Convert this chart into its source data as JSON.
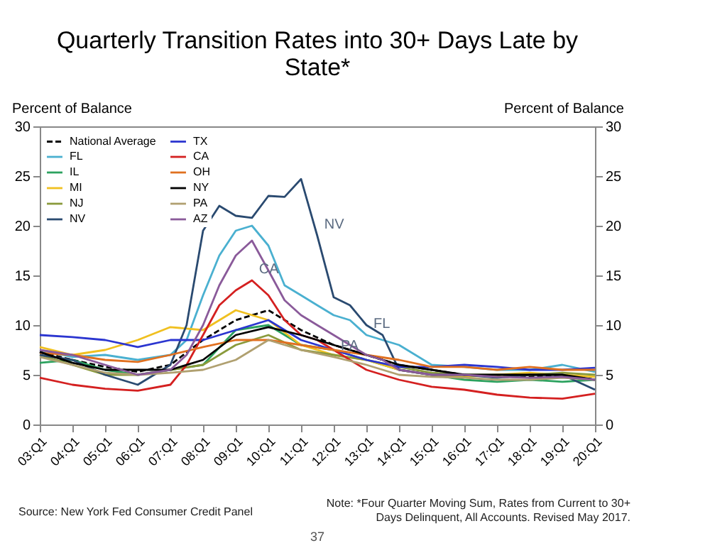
{
  "chart_data": {
    "type": "line",
    "title": "Quarterly Transition Rates into 30+ Days Late by State*",
    "ylabel": "Percent of Balance",
    "y2label": "Percent of Balance",
    "x": [
      "2003-01",
      "2004-01",
      "2005-01",
      "2006-01",
      "2007-01",
      "2008-01",
      "2009-01",
      "2010-01",
      "2011-01",
      "2012-01",
      "2013-01",
      "2014-01",
      "2015-01",
      "2016-01",
      "2017-01",
      "2018-01",
      "2019-01",
      "2020-01"
    ],
    "xlim": [
      "2003-01",
      "2020-01"
    ],
    "xticks": [
      {
        "value": "2003-01",
        "label": "03:Q1"
      },
      {
        "value": "2004-01",
        "label": "04:Q1"
      },
      {
        "value": "2005-01",
        "label": "05:Q1"
      },
      {
        "value": "2006-01",
        "label": "06:Q1"
      },
      {
        "value": "2007-01",
        "label": "07:Q1"
      },
      {
        "value": "2008-01",
        "label": "08:Q1"
      },
      {
        "value": "2009-01",
        "label": "09:Q1"
      },
      {
        "value": "2010-01",
        "label": "10:Q1"
      },
      {
        "value": "2011-01",
        "label": "11:Q1"
      },
      {
        "value": "2012-01",
        "label": "12:Q1"
      },
      {
        "value": "2013-01",
        "label": "13:Q1"
      },
      {
        "value": "2014-01",
        "label": "14:Q1"
      },
      {
        "value": "2015-01",
        "label": "15:Q1"
      },
      {
        "value": "2016-01",
        "label": "16:Q1"
      },
      {
        "value": "2017-01",
        "label": "17:Q1"
      },
      {
        "value": "2018-01",
        "label": "18:Q1"
      },
      {
        "value": "2019-01",
        "label": "19:Q1"
      },
      {
        "value": "2020-01",
        "label": "20:Q1"
      }
    ],
    "ylim": [
      0,
      30
    ],
    "yticks": [
      0,
      5,
      10,
      15,
      20,
      25,
      30
    ],
    "y2lim": [
      0,
      30
    ],
    "y2ticks": [
      0,
      5,
      10,
      15,
      20,
      25,
      30
    ],
    "grid": false,
    "legend": "top left",
    "marker": "none",
    "series": [
      {
        "name": "National Average",
        "color": "#000000",
        "line_style": "dashed",
        "values": [
          7.3,
          6.5,
          5.8,
          5.3,
          6,
          8.5,
          10.5,
          11.5,
          9.5,
          8,
          7,
          6,
          5.5,
          5,
          4.8,
          4.8,
          5,
          4.5
        ]
      },
      {
        "name": "FL",
        "color": "#4ab0d0",
        "x": [
          "2003-01",
          "2004-01",
          "2005-01",
          "2006-01",
          "2007-01",
          "2007-07",
          "2008-01",
          "2008-07",
          "2009-01",
          "2009-07",
          "2010-01",
          "2010-07",
          "2011-01",
          "2011-07",
          "2012-01",
          "2012-07",
          "2013-01",
          "2013-07",
          "2014-01",
          "2015-01",
          "2016-01",
          "2017-01",
          "2018-01",
          "2019-01",
          "2020-01"
        ],
        "values": [
          7.5,
          6.8,
          7,
          6.5,
          7,
          8.5,
          13,
          17,
          19.5,
          20,
          18,
          14,
          13,
          12,
          11,
          10.5,
          9,
          8.5,
          8,
          6,
          5.8,
          5.5,
          5.5,
          6,
          5.3
        ]
      },
      {
        "name": "IL",
        "color": "#2ca25f",
        "values": [
          6.2,
          6.5,
          5.5,
          5,
          5.5,
          6,
          9.5,
          10,
          8,
          7.5,
          6.5,
          5.5,
          5,
          4.5,
          4.3,
          4.5,
          4.3,
          4.5
        ]
      },
      {
        "name": "MI",
        "color": "#f0c020",
        "values": [
          7.8,
          7,
          7.5,
          8.5,
          9.8,
          9.5,
          11.5,
          10.5,
          8,
          7,
          6.5,
          5.5,
          5,
          4.8,
          5,
          5.2,
          5,
          4.8
        ]
      },
      {
        "name": "NJ",
        "color": "#8a9a3b",
        "values": [
          7,
          6,
          5,
          5,
          5.5,
          6,
          8,
          9,
          7.5,
          7,
          6.5,
          5.8,
          5.2,
          5,
          5,
          5,
          5.2,
          5
        ]
      },
      {
        "name": "NV",
        "color": "#2a4a70",
        "x": [
          "2003-01",
          "2004-01",
          "2005-01",
          "2006-01",
          "2007-01",
          "2007-07",
          "2008-01",
          "2008-07",
          "2009-01",
          "2009-07",
          "2010-01",
          "2010-07",
          "2011-01",
          "2011-07",
          "2012-01",
          "2012-07",
          "2013-01",
          "2013-07",
          "2014-01",
          "2015-01",
          "2016-01",
          "2017-01",
          "2018-01",
          "2019-01",
          "2020-01"
        ],
        "values": [
          7,
          6.5,
          5,
          4,
          6,
          10,
          19.5,
          22,
          21,
          20.8,
          23,
          22.9,
          24.7,
          19,
          12.8,
          12,
          10,
          9,
          5.5,
          5,
          5,
          4.7,
          5,
          5,
          3.5
        ]
      },
      {
        "name": "TX",
        "color": "#2b35d0",
        "values": [
          9,
          8.8,
          8.5,
          7.8,
          8.5,
          8.5,
          9.5,
          10.5,
          8.5,
          7.5,
          6.5,
          5.8,
          5.8,
          6,
          5.8,
          5.5,
          5.5,
          5.7
        ]
      },
      {
        "name": "CA",
        "color": "#d42020",
        "x": [
          "2003-01",
          "2004-01",
          "2005-01",
          "2006-01",
          "2007-01",
          "2007-07",
          "2008-01",
          "2008-07",
          "2009-01",
          "2009-07",
          "2010-01",
          "2010-07",
          "2011-01",
          "2011-07",
          "2012-01",
          "2012-07",
          "2013-01",
          "2013-07",
          "2014-01",
          "2015-01",
          "2016-01",
          "2017-01",
          "2018-01",
          "2019-01",
          "2020-01"
        ],
        "values": [
          4.7,
          4,
          3.6,
          3.4,
          4,
          6,
          9,
          12,
          13.5,
          14.5,
          13,
          10.5,
          9,
          8.5,
          7.5,
          6.5,
          5.5,
          5,
          4.5,
          3.8,
          3.5,
          3,
          2.7,
          2.6,
          3.1
        ]
      },
      {
        "name": "OH",
        "color": "#e07020",
        "values": [
          7.2,
          7,
          6.5,
          6.3,
          7,
          7.8,
          8.5,
          8.5,
          8,
          7.5,
          7,
          6.5,
          5.8,
          5.8,
          5.5,
          5.8,
          5.5,
          5.5
        ]
      },
      {
        "name": "NY",
        "color": "#000000",
        "values": [
          7.3,
          6.2,
          5.5,
          5.5,
          5.5,
          6.5,
          9,
          9.8,
          9,
          8,
          7,
          6,
          5.5,
          5,
          5,
          5,
          5,
          4.5
        ]
      },
      {
        "name": "PA",
        "color": "#b0a070",
        "values": [
          6.8,
          6,
          5.2,
          5,
          5.2,
          5.5,
          6.5,
          8.5,
          7.5,
          6.8,
          6,
          5,
          4.8,
          4.7,
          4.5,
          4.5,
          4.7,
          4.5
        ]
      },
      {
        "name": "AZ",
        "color": "#8a5a9a",
        "x": [
          "2003-01",
          "2004-01",
          "2005-01",
          "2006-01",
          "2007-01",
          "2007-07",
          "2008-01",
          "2008-07",
          "2009-01",
          "2009-07",
          "2010-01",
          "2010-07",
          "2011-01",
          "2011-07",
          "2012-01",
          "2012-07",
          "2013-01",
          "2013-07",
          "2014-01",
          "2015-01",
          "2016-01",
          "2017-01",
          "2018-01",
          "2019-01",
          "2020-01"
        ],
        "values": [
          7.5,
          7,
          6,
          5,
          5.5,
          7,
          10,
          14,
          17,
          18.5,
          15.5,
          12.5,
          11,
          10,
          9,
          8,
          7,
          6.5,
          5.5,
          5,
          5,
          4.8,
          4.7,
          4.8,
          4.5
        ]
      }
    ],
    "annotations": [
      {
        "text": "NV",
        "x": "2011-07",
        "y": 19
      },
      {
        "text": "FL",
        "x": "2013-01",
        "y": 9
      },
      {
        "text": "CA",
        "x": "2009-07",
        "y": 14.5
      },
      {
        "text": "PA",
        "x": "2012-01",
        "y": 6.8
      },
      "Source: New York Fed Consumer Credit Panel",
      "Note: *Four Quarter Moving Sum, Rates from Current to 30+ Days Delinquent, All Accounts. Revised May 2017.",
      "37"
    ]
  }
}
